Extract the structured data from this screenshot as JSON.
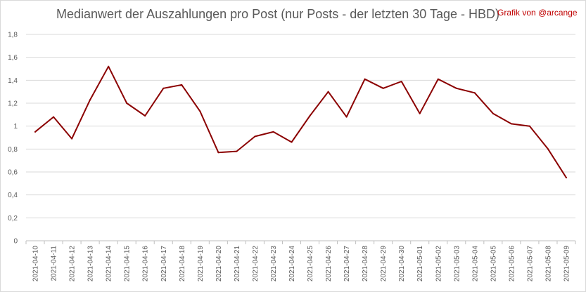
{
  "chart_data": {
    "type": "line",
    "title": "Medianwert der Auszahlungen pro Post (nur Posts - der letzten 30 Tage - HBD)",
    "credit": "Grafik von @arcange",
    "xlabel": "",
    "ylabel": "",
    "ylim": [
      0,
      1.8
    ],
    "yticks": [
      "0",
      "0,2",
      "0,4",
      "0,6",
      "0,8",
      "1",
      "1,2",
      "1,4",
      "1,6",
      "1,8"
    ],
    "grid": true,
    "legend": "none",
    "line_color": "#8b0000",
    "categories": [
      "2021-04-10",
      "2021-04-11",
      "2021-04-12",
      "2021-04-13",
      "2021-04-14",
      "2021-04-15",
      "2021-04-16",
      "2021-04-17",
      "2021-04-18",
      "2021-04-19",
      "2021-04-20",
      "2021-04-21",
      "2021-04-22",
      "2021-04-23",
      "2021-04-24",
      "2021-04-25",
      "2021-04-26",
      "2021-04-27",
      "2021-04-28",
      "2021-04-29",
      "2021-04-30",
      "2021-05-01",
      "2021-05-02",
      "2021-05-03",
      "2021-05-04",
      "2021-05-05",
      "2021-05-06",
      "2021-05-07",
      "2021-05-08",
      "2021-05-09"
    ],
    "series": [
      {
        "values": [
          0.95,
          1.08,
          0.89,
          1.23,
          1.52,
          1.2,
          1.09,
          1.33,
          1.36,
          1.13,
          0.77,
          0.78,
          0.91,
          0.95,
          0.86,
          1.09,
          1.3,
          1.08,
          1.41,
          1.33,
          1.39,
          1.11,
          1.41,
          1.33,
          1.29,
          1.11,
          1.02,
          1.0,
          0.8,
          0.55
        ]
      }
    ]
  }
}
